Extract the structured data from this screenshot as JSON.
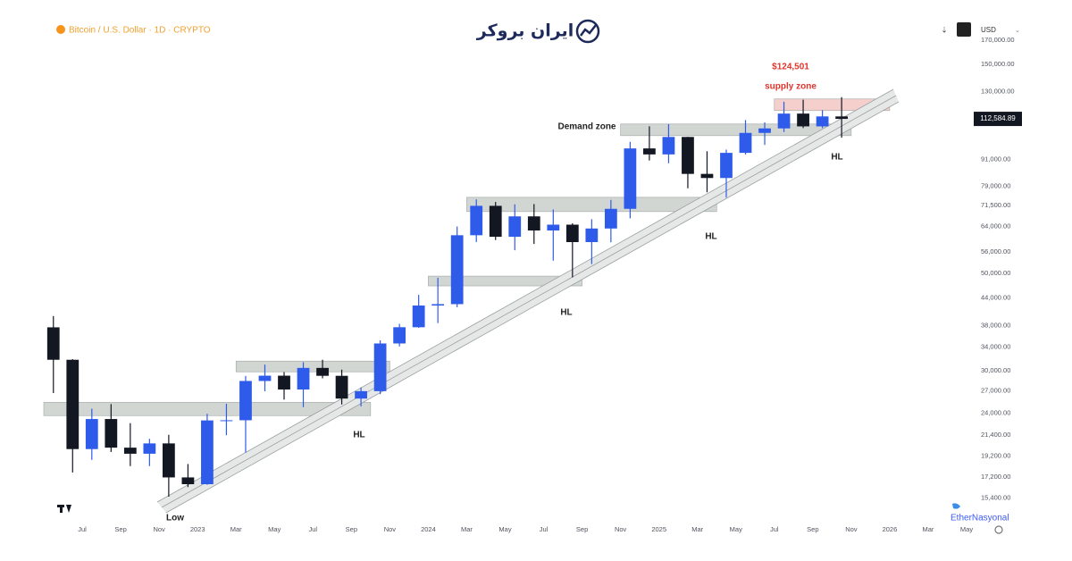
{
  "header": {
    "logo": "ایران بروکر",
    "currency": "USD"
  },
  "watermark": "EtherNasyonal",
  "chart_data": {
    "type": "candlestick",
    "title": "Bitcoin / U.S. Dollar · 1D · CRYPTO",
    "log_y": true,
    "grid": false,
    "up_color": "#2f5bea",
    "down_color": "#131722",
    "xlim": [
      "2022-05",
      "2026-05"
    ],
    "ylim": [
      15000,
      175000
    ],
    "x": [
      "2022-05",
      "2022-06",
      "2022-07",
      "2022-08",
      "2022-09",
      "2022-10",
      "2022-11",
      "2022-12",
      "2023-01",
      "2023-02",
      "2023-03",
      "2023-04",
      "2023-05",
      "2023-06",
      "2023-07",
      "2023-08",
      "2023-09",
      "2023-10",
      "2023-11",
      "2023-12",
      "2024-01",
      "2024-02",
      "2024-03",
      "2024-04",
      "2024-05",
      "2024-06",
      "2024-07",
      "2024-08",
      "2024-09",
      "2024-10",
      "2024-11",
      "2024-12",
      "2025-01",
      "2025-02",
      "2025-03",
      "2025-04",
      "2025-05",
      "2025-06",
      "2025-07",
      "2025-08",
      "2025-09",
      "2025-10"
    ],
    "open": [
      37700,
      31800,
      19900,
      23300,
      20050,
      19420,
      20500,
      17150,
      16550,
      23130,
      23150,
      28450,
      29250,
      27200,
      30470,
      29230,
      25940,
      26970,
      34640,
      37720,
      42270,
      42580,
      61130,
      71330,
      60640,
      67490,
      62680,
      64620,
      58970,
      63330,
      70220,
      96410,
      93430,
      102400,
      84350,
      82550,
      94200,
      104600,
      107100,
      115750,
      108250,
      114050
    ],
    "high": [
      40000,
      31900,
      24600,
      25200,
      22800,
      21000,
      21450,
      18400,
      23950,
      25250,
      29200,
      31000,
      29800,
      31400,
      31800,
      30200,
      27500,
      35200,
      38400,
      44700,
      48900,
      64000,
      73800,
      72800,
      71900,
      72000,
      70000,
      65100,
      66500,
      73600,
      99800,
      108300,
      109500,
      102500,
      95000,
      95800,
      111900,
      110500,
      123200,
      124500,
      117900,
      126200
    ],
    "low": [
      26700,
      17600,
      18800,
      19600,
      18200,
      18200,
      15500,
      16300,
      16500,
      21400,
      19550,
      26950,
      25800,
      24800,
      28850,
      25150,
      24900,
      26550,
      34100,
      37600,
      38550,
      41900,
      59000,
      59600,
      56500,
      58400,
      53500,
      49000,
      52550,
      58900,
      66800,
      90500,
      89200,
      78200,
      76600,
      74500,
      93400,
      98200,
      105100,
      107300,
      107300,
      102000
    ],
    "close": [
      31800,
      19900,
      23300,
      20050,
      19420,
      20500,
      17150,
      16550,
      23130,
      23150,
      28450,
      29250,
      27200,
      30470,
      29230,
      25940,
      26970,
      34640,
      37720,
      42270,
      42580,
      61130,
      71330,
      60640,
      67490,
      62680,
      64620,
      58970,
      63330,
      70220,
      96410,
      93430,
      102400,
      84350,
      82550,
      94200,
      104600,
      107100,
      115750,
      108250,
      114050,
      112584.89
    ],
    "last_price": 112584.89,
    "last_price_label": "112,584.89",
    "yticks": [
      {
        "value": 15400,
        "label": "15,400.00"
      },
      {
        "value": 17200,
        "label": "17,200.00"
      },
      {
        "value": 19200,
        "label": "19,200.00"
      },
      {
        "value": 21400,
        "label": "21,400.00"
      },
      {
        "value": 24000,
        "label": "24,000.00"
      },
      {
        "value": 27000,
        "label": "27,000.00"
      },
      {
        "value": 30000,
        "label": "30,000.00"
      },
      {
        "value": 34000,
        "label": "34,000.00"
      },
      {
        "value": 38000,
        "label": "38,000.00"
      },
      {
        "value": 44000,
        "label": "44,000.00"
      },
      {
        "value": 50000,
        "label": "50,000.00"
      },
      {
        "value": 56000,
        "label": "56,000.00"
      },
      {
        "value": 64000,
        "label": "64,000.00"
      },
      {
        "value": 71500,
        "label": "71,500.00"
      },
      {
        "value": 79000,
        "label": "79,000.00"
      },
      {
        "value": 91000,
        "label": "91,000.00"
      },
      {
        "value": 130000,
        "label": "130,000.00"
      },
      {
        "value": 150000,
        "label": "150,000.00"
      },
      {
        "value": 170000,
        "label": "170,000.00"
      }
    ],
    "xticks": [
      {
        "value": "2022-07",
        "label": "Jul"
      },
      {
        "value": "2022-09",
        "label": "Sep"
      },
      {
        "value": "2022-11",
        "label": "Nov"
      },
      {
        "value": "2023-01",
        "label": "2023"
      },
      {
        "value": "2023-03",
        "label": "Mar"
      },
      {
        "value": "2023-05",
        "label": "May"
      },
      {
        "value": "2023-07",
        "label": "Jul"
      },
      {
        "value": "2023-09",
        "label": "Sep"
      },
      {
        "value": "2023-11",
        "label": "Nov"
      },
      {
        "value": "2024-01",
        "label": "2024"
      },
      {
        "value": "2024-03",
        "label": "Mar"
      },
      {
        "value": "2024-05",
        "label": "May"
      },
      {
        "value": "2024-07",
        "label": "Jul"
      },
      {
        "value": "2024-09",
        "label": "Sep"
      },
      {
        "value": "2024-11",
        "label": "Nov"
      },
      {
        "value": "2025-01",
        "label": "2025"
      },
      {
        "value": "2025-03",
        "label": "Mar"
      },
      {
        "value": "2025-05",
        "label": "May"
      },
      {
        "value": "2025-07",
        "label": "Jul"
      },
      {
        "value": "2025-09",
        "label": "Sep"
      },
      {
        "value": "2025-11",
        "label": "Nov"
      },
      {
        "value": "2026-01",
        "label": "2026"
      },
      {
        "value": "2026-03",
        "label": "Mar"
      },
      {
        "value": "2026-05",
        "label": "May"
      }
    ],
    "zones": [
      {
        "x": [
          "2022-05",
          "2023-10"
        ],
        "y": [
          23720,
          25430
        ],
        "color": "#c9cfcc"
      },
      {
        "x": [
          "2023-03",
          "2023-11"
        ],
        "y": [
          29850,
          31580
        ],
        "color": "#c9cfcc"
      },
      {
        "x": [
          "2024-01",
          "2024-09"
        ],
        "y": [
          46860,
          49330
        ],
        "color": "#c9cfcc"
      },
      {
        "x": [
          "2024-03",
          "2025-04"
        ],
        "y": [
          69210,
          74590
        ],
        "color": "#c9cfcc"
      },
      {
        "x": [
          "2024-11",
          "2025-11"
        ],
        "y": [
          103100,
          109600
        ],
        "color": "#c9cfcc"
      },
      {
        "x": [
          "2025-07",
          "2026-01"
        ],
        "y": [
          117600,
          125000
        ],
        "color": "#f4c7c3"
      }
    ],
    "annotations": [
      "$124,501",
      "supply zone",
      "Demand zone",
      "HL",
      "HL",
      "HL",
      "HL",
      "Low"
    ]
  }
}
